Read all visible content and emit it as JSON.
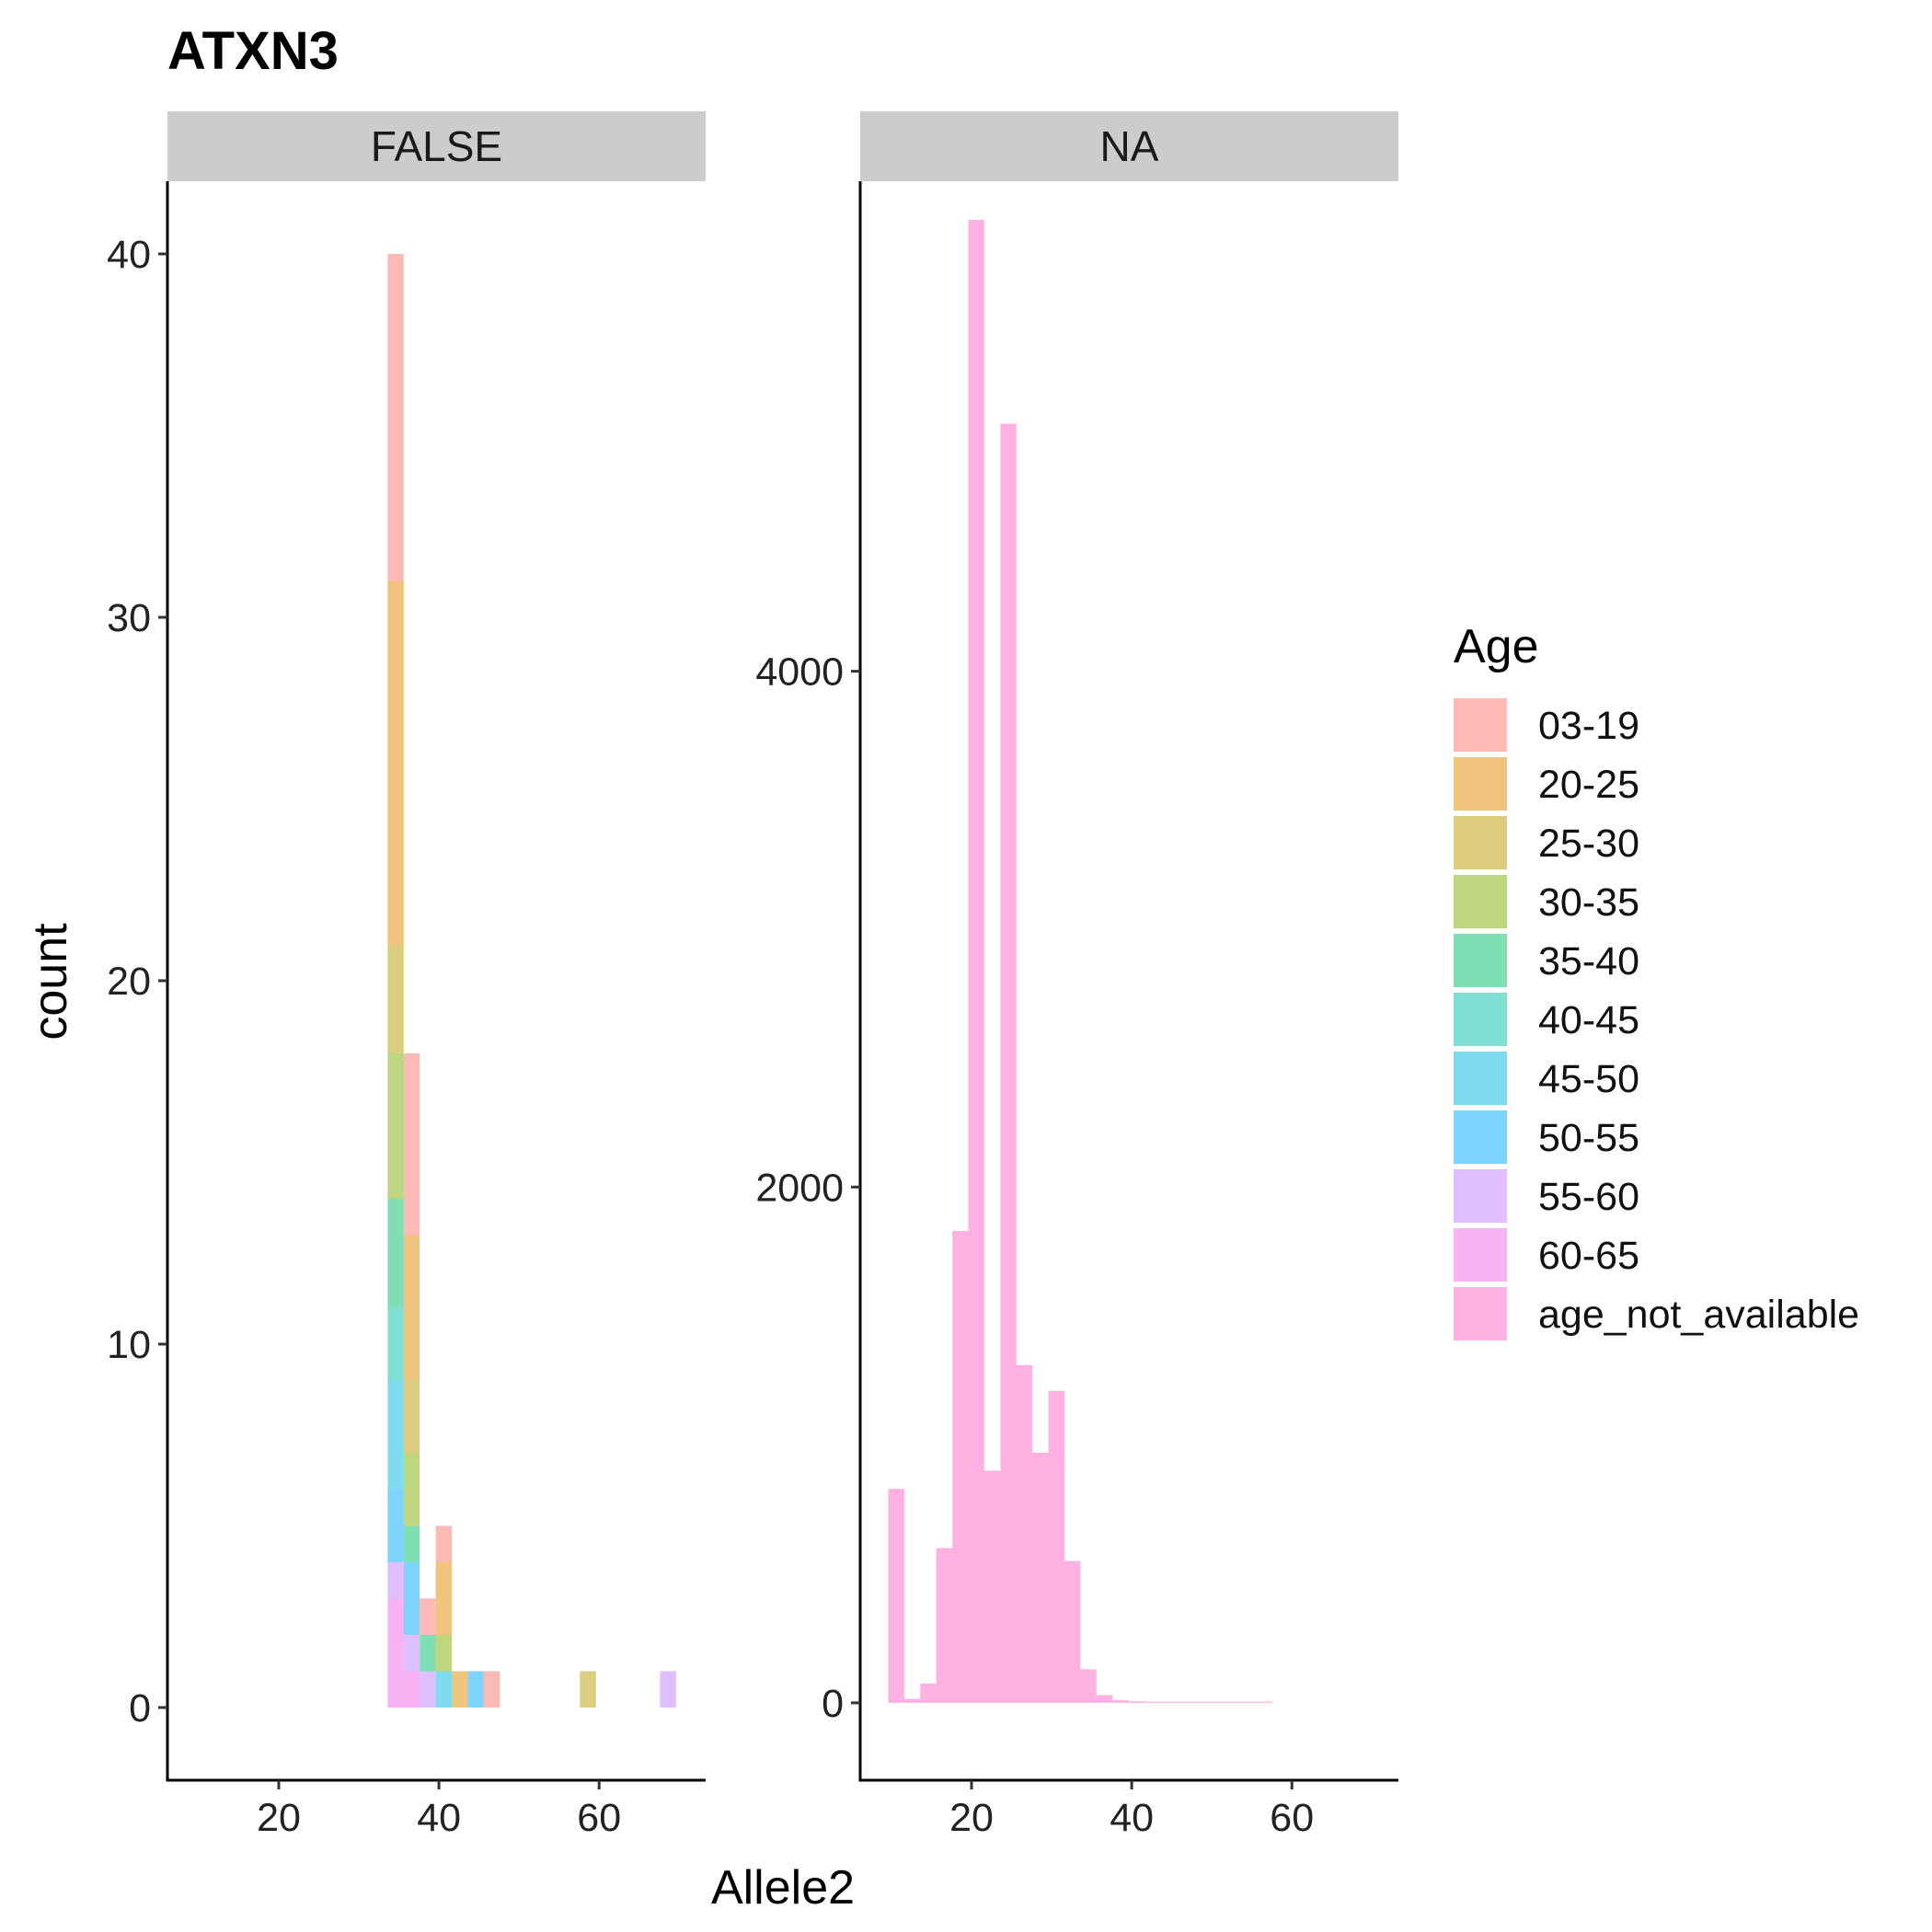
{
  "chart_data": {
    "type": "bar",
    "subtype": "stacked histogram, faceted",
    "title": "ATXN3",
    "xlabel": "Allele2",
    "ylabel": "count",
    "legend": {
      "title": "Age",
      "placement": "right",
      "entries": [
        {
          "key": "03-19",
          "color": "#F8766D"
        },
        {
          "key": "20-25",
          "color": "#E18A00"
        },
        {
          "key": "25-30",
          "color": "#BE9C00"
        },
        {
          "key": "30-35",
          "color": "#7CAE00"
        },
        {
          "key": "35-40",
          "color": "#00BE67"
        },
        {
          "key": "40-45",
          "color": "#00C1A7"
        },
        {
          "key": "45-50",
          "color": "#00BADE"
        },
        {
          "key": "50-55",
          "color": "#00A9FF"
        },
        {
          "key": "55-60",
          "color": "#BF80FF"
        },
        {
          "key": "60-65",
          "color": "#F066EA"
        },
        {
          "key": "age_not_available",
          "color": "#FF66C4"
        }
      ]
    },
    "fill_opacity": 0.5,
    "grid": false,
    "panels": [
      {
        "strip": "FALSE",
        "xlim": [
          6.1,
          73.3
        ],
        "ylim": [
          -2,
          42
        ],
        "x_ticks": [
          20,
          40,
          60
        ],
        "y_ticks": [
          0,
          10,
          20,
          30,
          40
        ],
        "bins": [
          {
            "x0": 33.6,
            "x1": 35.6,
            "stack": {
              "60-65": 3,
              "55-60": 1,
              "50-55": 2,
              "45-50": 3,
              "40-45": 2,
              "35-40": 3,
              "30-35": 4,
              "25-30": 3,
              "20-25": 10,
              "03-19": 9
            }
          },
          {
            "x0": 35.6,
            "x1": 37.6,
            "stack": {
              "60-65": 1,
              "55-60": 1,
              "50-55": 2,
              "35-40": 1,
              "30-35": 2,
              "25-30": 2,
              "20-25": 4,
              "03-19": 5
            }
          },
          {
            "x0": 37.6,
            "x1": 39.6,
            "stack": {
              "55-60": 1,
              "35-40": 1,
              "03-19": 1
            }
          },
          {
            "x0": 39.6,
            "x1": 41.6,
            "stack": {
              "45-50": 1,
              "30-35": 1,
              "20-25": 2,
              "03-19": 1
            }
          },
          {
            "x0": 41.6,
            "x1": 43.6,
            "stack": {
              "20-25": 1
            }
          },
          {
            "x0": 43.6,
            "x1": 45.6,
            "stack": {
              "50-55": 1
            }
          },
          {
            "x0": 45.6,
            "x1": 47.6,
            "stack": {
              "03-19": 1
            }
          },
          {
            "x0": 57.6,
            "x1": 59.6,
            "stack": {
              "25-30": 1
            }
          },
          {
            "x0": 67.6,
            "x1": 69.6,
            "stack": {
              "55-60": 1
            }
          }
        ]
      },
      {
        "strip": "NA",
        "xlim": [
          6.1,
          73.3
        ],
        "ylim": [
          -300,
          5900
        ],
        "x_ticks": [
          20,
          40,
          60
        ],
        "y_ticks": [
          0,
          2000,
          4000
        ],
        "bins": [
          {
            "x0": 9.6,
            "x1": 11.6,
            "stack": {
              "age_not_available": 830
            }
          },
          {
            "x0": 11.6,
            "x1": 13.6,
            "stack": {
              "age_not_available": 15
            }
          },
          {
            "x0": 13.6,
            "x1": 15.6,
            "stack": {
              "age_not_available": 75
            }
          },
          {
            "x0": 15.6,
            "x1": 17.6,
            "stack": {
              "age_not_available": 600
            }
          },
          {
            "x0": 17.6,
            "x1": 19.6,
            "stack": {
              "age_not_available": 1830
            }
          },
          {
            "x0": 19.6,
            "x1": 21.6,
            "stack": {
              "age_not_available": 5750
            }
          },
          {
            "x0": 21.6,
            "x1": 23.6,
            "stack": {
              "age_not_available": 900
            }
          },
          {
            "x0": 23.6,
            "x1": 25.6,
            "stack": {
              "age_not_available": 4960
            }
          },
          {
            "x0": 25.6,
            "x1": 27.6,
            "stack": {
              "age_not_available": 1310
            }
          },
          {
            "x0": 27.6,
            "x1": 29.6,
            "stack": {
              "age_not_available": 970
            }
          },
          {
            "x0": 29.6,
            "x1": 31.6,
            "stack": {
              "age_not_available": 1210
            }
          },
          {
            "x0": 31.6,
            "x1": 33.6,
            "stack": {
              "age_not_available": 550
            }
          },
          {
            "x0": 33.6,
            "x1": 35.6,
            "stack": {
              "age_not_available": 130
            }
          },
          {
            "x0": 35.6,
            "x1": 37.6,
            "stack": {
              "age_not_available": 30
            }
          },
          {
            "x0": 37.6,
            "x1": 39.6,
            "stack": {
              "age_not_available": 10
            }
          },
          {
            "x0": 39.6,
            "x1": 41.6,
            "stack": {
              "age_not_available": 6
            }
          },
          {
            "x0": 41.6,
            "x1": 43.6,
            "stack": {
              "age_not_available": 4
            }
          },
          {
            "x0": 43.6,
            "x1": 45.6,
            "stack": {
              "age_not_available": 3
            }
          },
          {
            "x0": 45.6,
            "x1": 47.6,
            "stack": {
              "age_not_available": 2
            }
          },
          {
            "x0": 47.6,
            "x1": 49.6,
            "stack": {
              "age_not_available": 2
            }
          },
          {
            "x0": 49.6,
            "x1": 51.6,
            "stack": {
              "age_not_available": 1
            }
          },
          {
            "x0": 51.6,
            "x1": 53.6,
            "stack": {
              "age_not_available": 1
            }
          },
          {
            "x0": 53.6,
            "x1": 55.6,
            "stack": {
              "age_not_available": 1
            }
          },
          {
            "x0": 55.6,
            "x1": 57.6,
            "stack": {
              "age_not_available": 1
            }
          }
        ]
      }
    ]
  }
}
